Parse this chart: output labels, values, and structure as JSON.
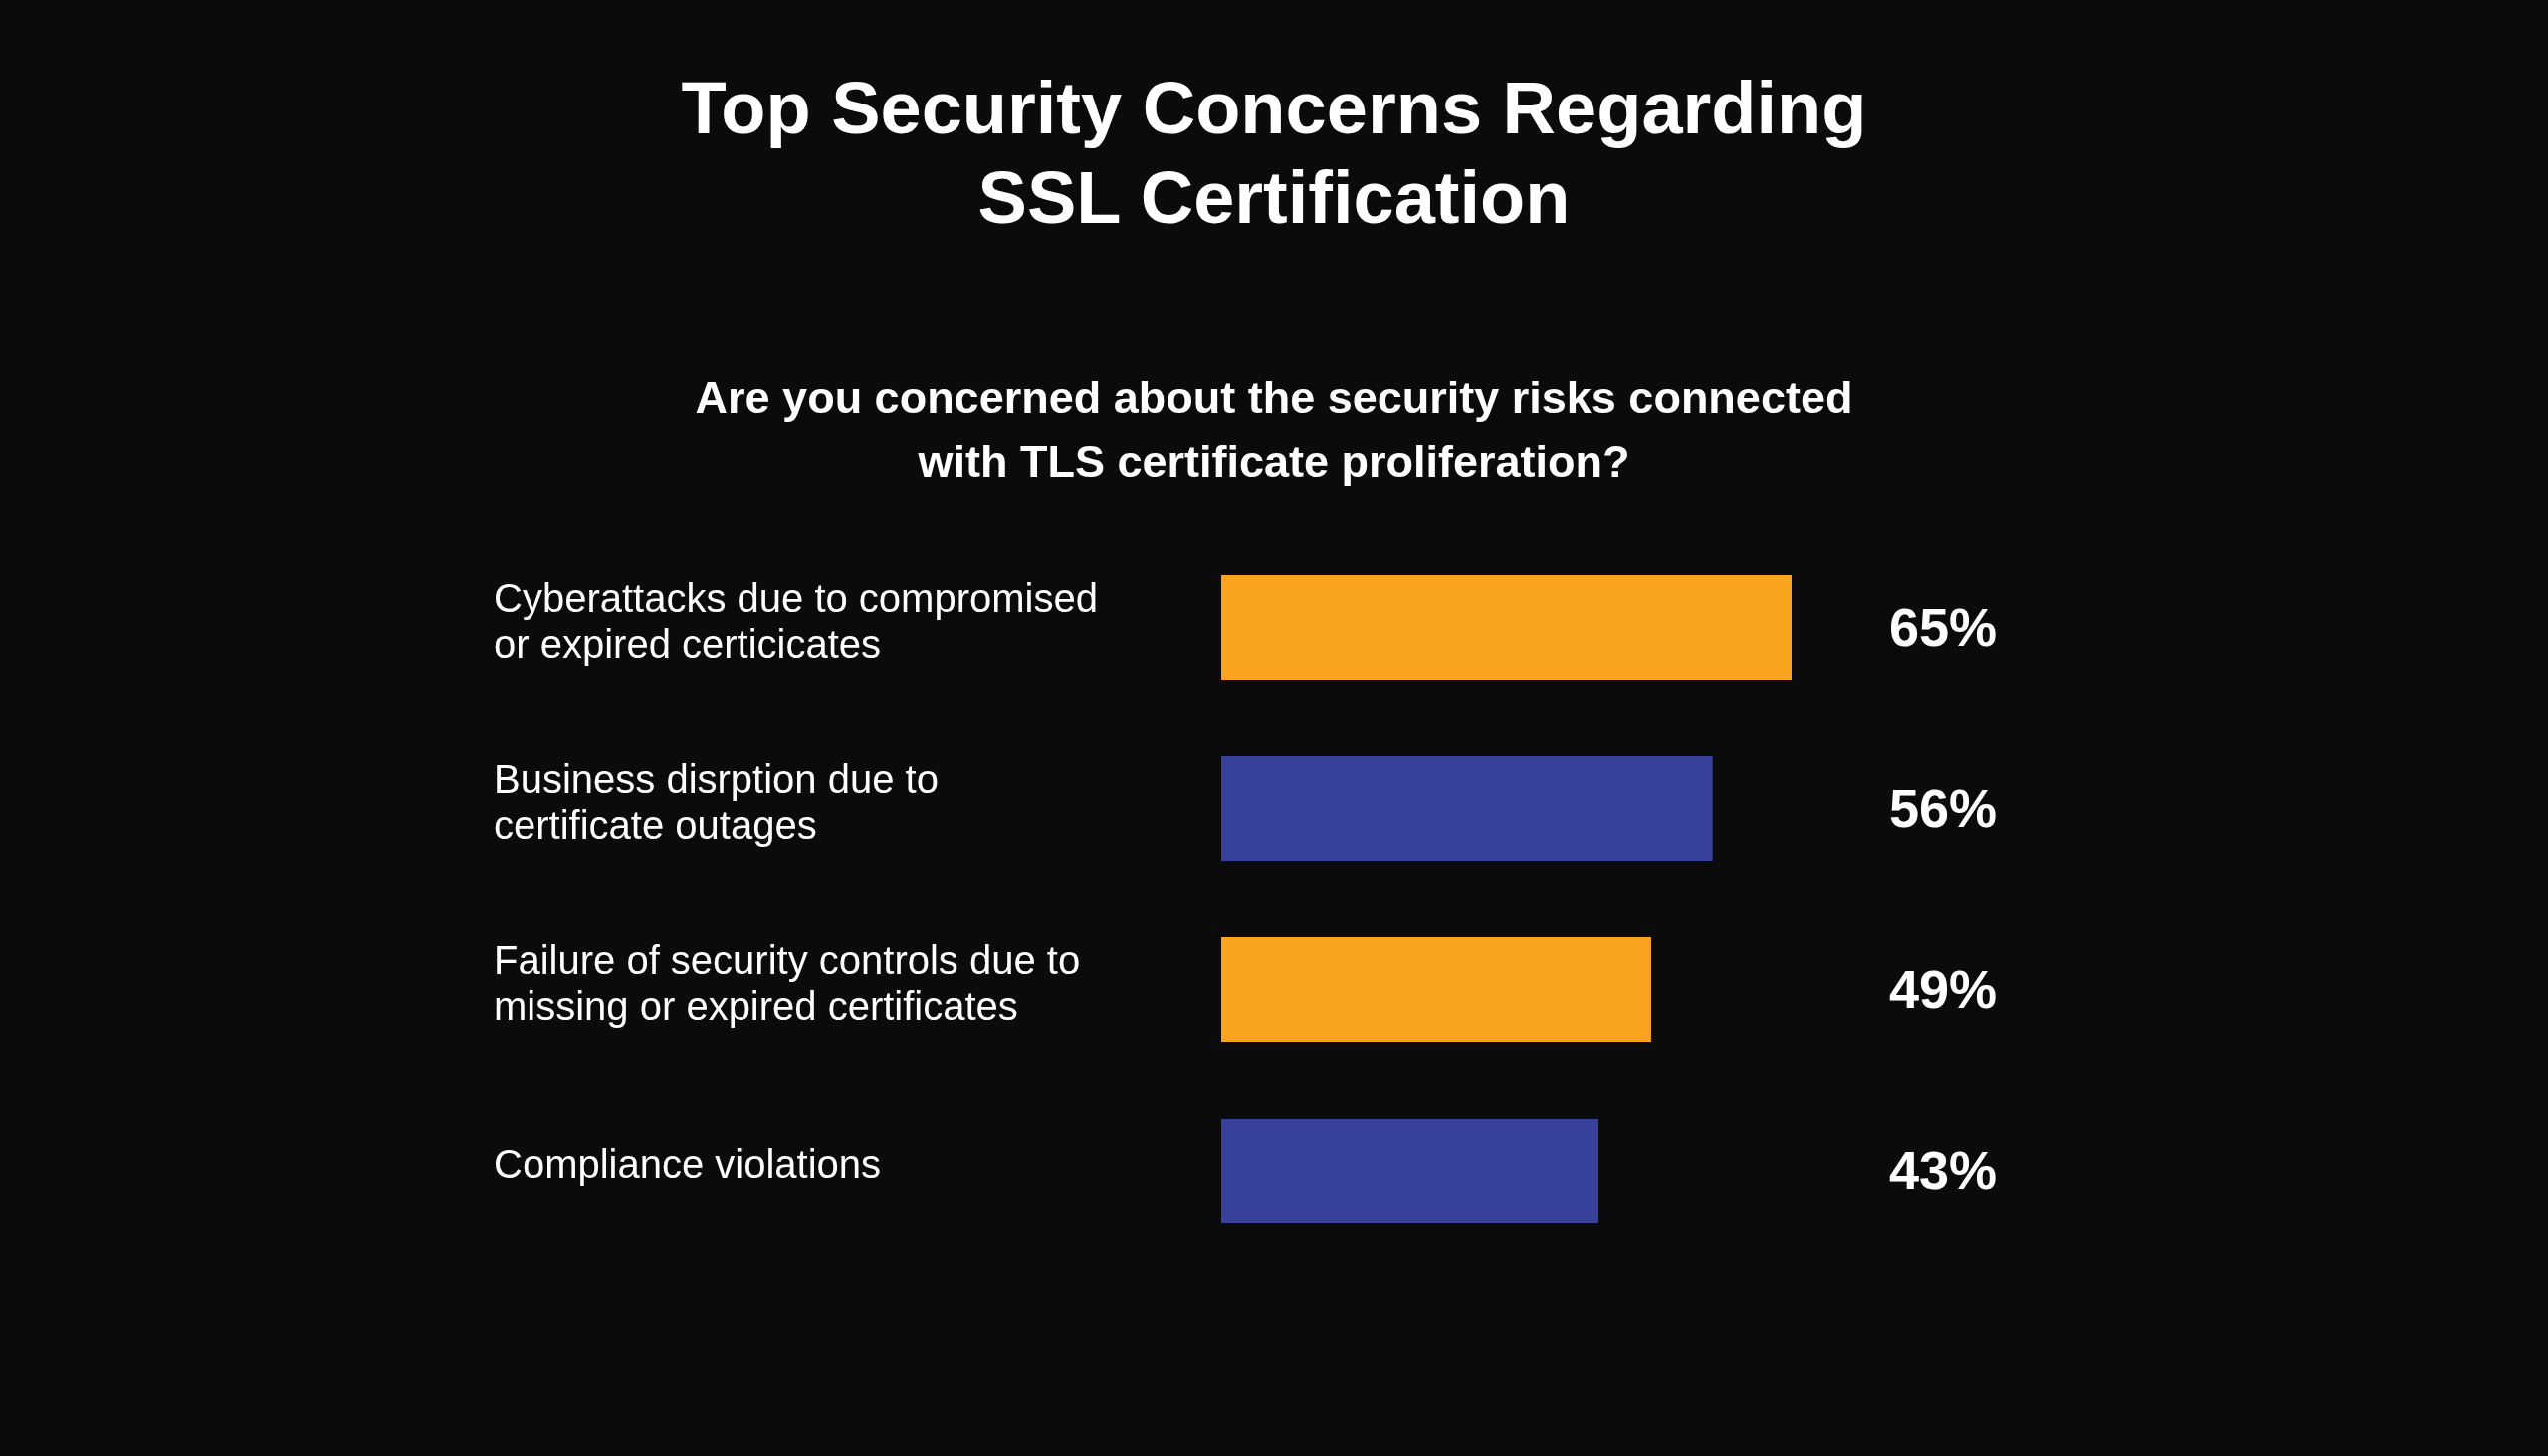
{
  "chart_data": {
    "type": "bar",
    "orientation": "horizontal",
    "title": "Top Security Concerns Regarding SSL Certification",
    "subtitle": "Are you concerned about the security risks connected with TLS certificate proliferation?",
    "categories": [
      "Cyberattacks due to compromised or expired certicicates",
      "Business disrption due to certificate outages",
      "Failure of security controls due to missing or expired certificates",
      "Compliance violations"
    ],
    "values": [
      65,
      56,
      49,
      43
    ],
    "colors": [
      "#f9a31f",
      "#37419a",
      "#f9a31f",
      "#37419a"
    ],
    "value_labels": [
      "65%",
      "56%",
      "49%",
      "43%"
    ],
    "tick_labels": "y"
  }
}
